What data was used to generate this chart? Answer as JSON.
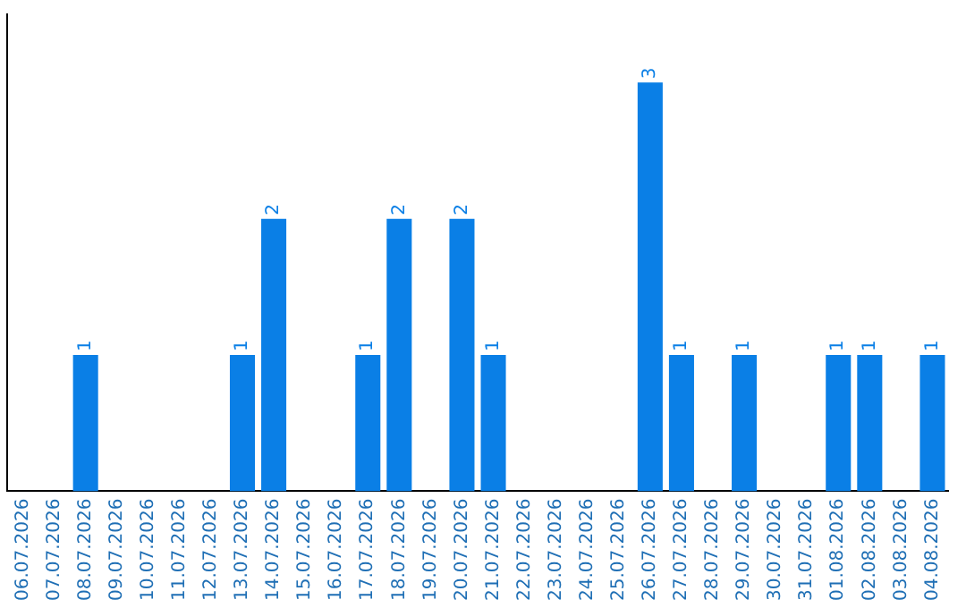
{
  "chart_data": {
    "type": "bar",
    "categories": [
      "06.07.2026",
      "07.07.2026",
      "08.07.2026",
      "09.07.2026",
      "10.07.2026",
      "11.07.2026",
      "12.07.2026",
      "13.07.2026",
      "14.07.2026",
      "15.07.2026",
      "16.07.2026",
      "17.07.2026",
      "18.07.2026",
      "19.07.2026",
      "20.07.2026",
      "21.07.2026",
      "22.07.2026",
      "23.07.2026",
      "24.07.2026",
      "25.07.2026",
      "26.07.2026",
      "27.07.2026",
      "28.07.2026",
      "29.07.2026",
      "30.07.2026",
      "31.07.2026",
      "01.08.2026",
      "02.08.2026",
      "03.08.2026",
      "04.08.2026"
    ],
    "values": [
      0,
      0,
      1,
      0,
      0,
      0,
      0,
      1,
      2,
      0,
      0,
      1,
      2,
      0,
      2,
      1,
      0,
      0,
      0,
      0,
      3,
      1,
      0,
      1,
      0,
      0,
      1,
      1,
      0,
      1
    ],
    "value_labels": [
      null,
      null,
      "1",
      null,
      null,
      null,
      null,
      "1",
      "2",
      null,
      null,
      "1",
      "2",
      null,
      "2",
      "1",
      null,
      null,
      null,
      null,
      "3",
      "1",
      null,
      "1",
      null,
      null,
      "1",
      "1",
      null,
      "1"
    ],
    "color": "#0a7fe6",
    "grid": false,
    "legend": false
  }
}
